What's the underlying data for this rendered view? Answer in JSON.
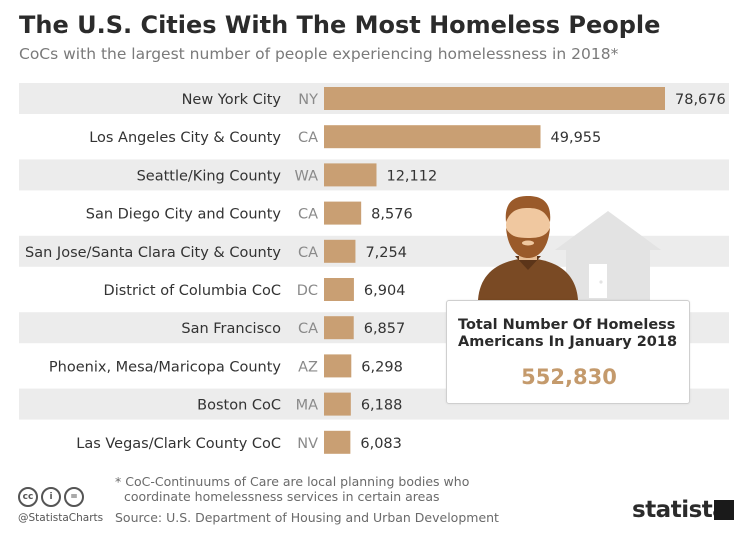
{
  "header": {
    "title": "The U.S. Cities With The Most Homeless People",
    "subtitle": "CoCs with the largest number of people experiencing homelessness in 2018*"
  },
  "chart_data": {
    "type": "bar",
    "orientation": "horizontal",
    "title": "The U.S. Cities With The Most Homeless People",
    "subtitle": "CoCs with the largest number of people experiencing homelessness in 2018*",
    "categories": [
      "New York City",
      "Los Angeles City & County",
      "Seattle/King County",
      "San Diego City and County",
      "San Jose/Santa Clara City & County",
      "District of Columbia CoC",
      "San Francisco",
      "Phoenix, Mesa/Maricopa County",
      "Boston CoC",
      "Las Vegas/Clark County CoC"
    ],
    "states": [
      "NY",
      "CA",
      "WA",
      "CA",
      "CA",
      "DC",
      "CA",
      "AZ",
      "MA",
      "NV"
    ],
    "values": [
      78676,
      49955,
      12112,
      8576,
      7254,
      6904,
      6857,
      6298,
      6188,
      6083
    ],
    "value_labels": [
      "78,676",
      "49,955",
      "12,112",
      "8,576",
      "7,254",
      "6,904",
      "6,857",
      "6,298",
      "6,188",
      "6,083"
    ],
    "xlim": [
      0,
      78676
    ],
    "grid": false,
    "colors": {
      "bar": "#c99f73",
      "row_band": "#ececec"
    }
  },
  "callout": {
    "label": "Total Number Of Homeless Americans In January 2018",
    "value": "552,830"
  },
  "footer": {
    "footnote_line1": "* CoC-Continuums of Care are local planning bodies who",
    "footnote_line2": "coordinate homelessness services in certain areas",
    "source": "Source: U.S. Department of Housing and Urban Development",
    "handle": "@StatistaCharts",
    "brand": "statista"
  },
  "icons": [
    "cc-icon",
    "attribution-icon",
    "no-derivatives-icon",
    "person-illustration-icon",
    "house-illustration-icon",
    "statista-logo-icon"
  ]
}
